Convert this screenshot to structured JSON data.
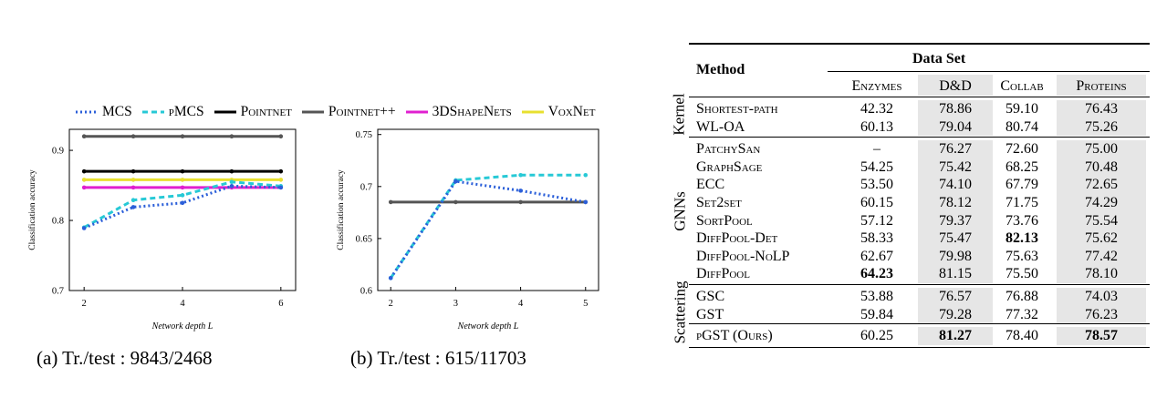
{
  "legend": {
    "items": [
      {
        "label": "MCS",
        "color": "#2b5fd9",
        "dash": "2,3"
      },
      {
        "label": "pMCS",
        "color": "#27c9d6",
        "dash": "6,4"
      },
      {
        "label": "Pointnet",
        "color": "#000000",
        "dash": ""
      },
      {
        "label": "Pointnet++",
        "color": "#555555",
        "dash": ""
      },
      {
        "label": "3DShapeNets",
        "color": "#e020d0",
        "dash": ""
      },
      {
        "label": "VoxNet",
        "color": "#e8e030",
        "dash": ""
      }
    ]
  },
  "chart_data": [
    {
      "type": "line",
      "x": [
        2,
        3,
        4,
        5,
        6
      ],
      "xlabel": "Network depth L",
      "ylabel": "Classification accuracy",
      "xlim": [
        1.7,
        6.3
      ],
      "ylim": [
        0.7,
        0.93
      ],
      "yticks": [
        "0.7",
        "0.8",
        "0.9"
      ],
      "xticks": [
        "2",
        "4",
        "6"
      ],
      "caption": "(a) Tr./test : 9843/2468",
      "series": [
        {
          "name": "Pointnet++",
          "values": [
            0.92,
            0.92,
            0.92,
            0.92,
            0.92
          ]
        },
        {
          "name": "Pointnet",
          "values": [
            0.87,
            0.87,
            0.87,
            0.87,
            0.87
          ]
        },
        {
          "name": "VoxNet",
          "values": [
            0.858,
            0.858,
            0.858,
            0.858,
            0.858
          ]
        },
        {
          "name": "3DShapeNets",
          "values": [
            0.847,
            0.847,
            0.847,
            0.847,
            0.847
          ]
        },
        {
          "name": "pMCS",
          "values": [
            0.79,
            0.829,
            0.836,
            0.855,
            0.849
          ]
        },
        {
          "name": "MCS",
          "values": [
            0.789,
            0.819,
            0.825,
            0.849,
            0.847
          ]
        }
      ]
    },
    {
      "type": "line",
      "x": [
        2,
        3,
        4,
        5
      ],
      "xlabel": "Network depth L",
      "ylabel": "Classification accuracy",
      "xlim": [
        1.8,
        5.2
      ],
      "ylim": [
        0.6,
        0.755
      ],
      "yticks": [
        "0.6",
        "0.65",
        "0.7",
        "0.75"
      ],
      "xticks": [
        "2",
        "3",
        "4",
        "5"
      ],
      "caption": "(b) Tr./test : 615/11703",
      "series": [
        {
          "name": "Pointnet++",
          "values": [
            0.685,
            0.685,
            0.685,
            0.685
          ]
        },
        {
          "name": "pMCS",
          "values": [
            0.612,
            0.706,
            0.711,
            0.711
          ]
        },
        {
          "name": "MCS",
          "values": [
            0.612,
            0.705,
            0.696,
            0.685
          ]
        }
      ]
    }
  ],
  "table": {
    "method_header": "Method",
    "dataset_header": "Data Set",
    "columns": [
      "Enzymes",
      "D&D",
      "Collab",
      "Proteins"
    ],
    "groups": [
      {
        "name": "Kernel",
        "rows": [
          {
            "method": "Shortest-path",
            "values": [
              "42.32",
              "78.86",
              "59.10",
              "76.43"
            ]
          },
          {
            "method": "WL-OA",
            "values": [
              "60.13",
              "79.04",
              "80.74",
              "75.26"
            ]
          }
        ]
      },
      {
        "name": "GNNs",
        "rows": [
          {
            "method": "PatchySan",
            "values": [
              "–",
              "76.27",
              "72.60",
              "75.00"
            ]
          },
          {
            "method": "GraphSage",
            "values": [
              "54.25",
              "75.42",
              "68.25",
              "70.48"
            ]
          },
          {
            "method": "ECC",
            "values": [
              "53.50",
              "74.10",
              "67.79",
              "72.65"
            ]
          },
          {
            "method": "Set2set",
            "values": [
              "60.15",
              "78.12",
              "71.75",
              "74.29"
            ]
          },
          {
            "method": "SortPool",
            "values": [
              "57.12",
              "79.37",
              "73.76",
              "75.54"
            ]
          },
          {
            "method": "DiffPool-Det",
            "values": [
              "58.33",
              "75.47",
              "82.13",
              "75.62"
            ]
          },
          {
            "method": "DiffPool-NoLP",
            "values": [
              "62.67",
              "79.98",
              "75.63",
              "77.42"
            ]
          },
          {
            "method": "DiffPool",
            "values": [
              "64.23",
              "81.15",
              "75.50",
              "78.10"
            ]
          }
        ]
      },
      {
        "name": "Scattering",
        "rows": [
          {
            "method": "GSC",
            "values": [
              "53.88",
              "76.57",
              "76.88",
              "74.03"
            ]
          },
          {
            "method": "GST",
            "values": [
              "59.84",
              "79.28",
              "77.32",
              "76.23"
            ]
          },
          {
            "method": "pGST (Ours)",
            "values": [
              "60.25",
              "81.27",
              "78.40",
              "78.57"
            ]
          }
        ]
      }
    ],
    "bold_cells": [
      "DiffPool-Det|Collab",
      "DiffPool|Enzymes",
      "pGST (Ours)|D&D",
      "pGST (Ours)|Proteins"
    ],
    "shaded_columns": [
      "D&D",
      "Proteins"
    ]
  }
}
